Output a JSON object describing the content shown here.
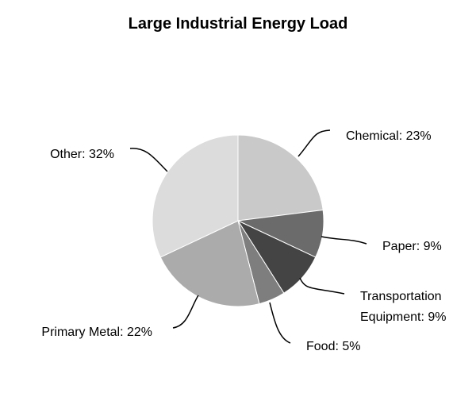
{
  "chart_data": {
    "type": "pie",
    "title": "Large Industrial Energy Load",
    "slices": [
      {
        "label": "Chemical",
        "value": 23,
        "display": [
          "Chemical: 23%"
        ],
        "color": "#c9c9c9"
      },
      {
        "label": "Paper",
        "value": 9,
        "display": [
          "Paper: 9%"
        ],
        "color": "#6b6b6b"
      },
      {
        "label": "Transportation Equipment",
        "value": 9,
        "display": [
          "Transportation",
          "Equipment: 9%"
        ],
        "color": "#444444"
      },
      {
        "label": "Food",
        "value": 5,
        "display": [
          "Food: 5%"
        ],
        "color": "#7e7e7e"
      },
      {
        "label": "Primary Metal",
        "value": 22,
        "display": [
          "Primary Metal: 22%"
        ],
        "color": "#ababab"
      },
      {
        "label": "Other",
        "value": 32,
        "display": [
          "Other: 32%"
        ],
        "color": "#dcdcdc"
      }
    ],
    "start": "top",
    "direction": "clockwise",
    "legend": "none"
  }
}
